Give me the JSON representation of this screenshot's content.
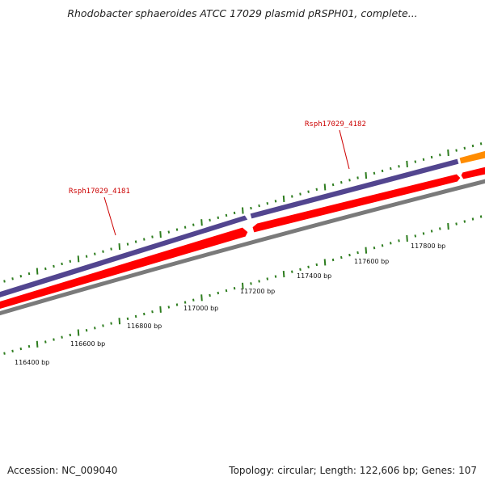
{
  "title": "Rhodobacter sphaeroides ATCC 17029 plasmid pRSPH01, complete...",
  "accession": "Accession: NC_009040",
  "summary": "Topology: circular; Length: 122,606 bp; Genes: 107",
  "colors": {
    "forward_feature": "#52458f",
    "reverse_feature": "#ff0000",
    "third_feature": "#ff8c00",
    "backbone": "#808080",
    "tick": "#2e7d1f",
    "gene_label": "#cc0000"
  },
  "genes": [
    {
      "name": "Rsph17029_4181",
      "strand": "reverse"
    },
    {
      "name": "Rsph17029_4182",
      "strand": "forward"
    }
  ],
  "scale": {
    "unit": "bp",
    "labels": [
      "116400 bp",
      "116600 bp",
      "116800 bp",
      "117000 bp",
      "117200 bp",
      "117400 bp",
      "117600 bp",
      "117800 bp"
    ]
  }
}
